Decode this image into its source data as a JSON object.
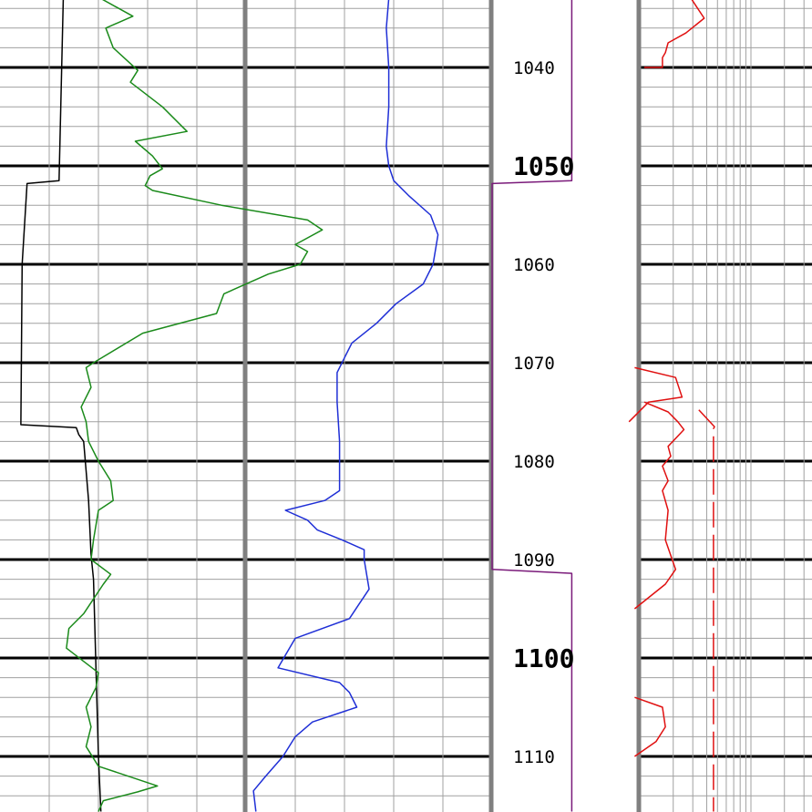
{
  "chart_data": {
    "type": "line",
    "depth_axis": {
      "range": [
        1033.2,
        1115.6
      ],
      "labels": [
        {
          "depth": 1040,
          "text": "1040",
          "weight": "minor"
        },
        {
          "depth": 1050,
          "text": "1050",
          "weight": "major"
        },
        {
          "depth": 1060,
          "text": "1060",
          "weight": "minor"
        },
        {
          "depth": 1070,
          "text": "1070",
          "weight": "minor"
        },
        {
          "depth": 1080,
          "text": "1080",
          "weight": "minor"
        },
        {
          "depth": 1090,
          "text": "1090",
          "weight": "minor"
        },
        {
          "depth": 1100,
          "text": "1100",
          "weight": "major"
        },
        {
          "depth": 1110,
          "text": "1110",
          "weight": "minor"
        }
      ]
    },
    "grid": {
      "linear_tracks": true,
      "log_track": true,
      "heavy_lines_every": 10
    },
    "colors": {
      "black_curve": "#000000",
      "green_curve": "#1a8a1a",
      "blue_curve": "#1f2fd6",
      "purple_curve": "#7a1a7a",
      "red_curve": "#e01010",
      "track_separator": "#808080",
      "grid_minor": "#a0a0a0",
      "grid_major": "#000000"
    },
    "series": [
      {
        "track": 1,
        "color_key": "black_curve",
        "scale": [
          0,
          10
        ],
        "points": [
          [
            1030,
            2.6
          ],
          [
            1051.5,
            2.4
          ],
          [
            1051.8,
            1.1
          ],
          [
            1060,
            0.9
          ],
          [
            1076.3,
            0.85
          ],
          [
            1076.6,
            3.1
          ],
          [
            1077.3,
            3.2
          ],
          [
            1078,
            3.4
          ],
          [
            1084,
            3.6
          ],
          [
            1089.5,
            3.7
          ],
          [
            1092,
            3.8
          ],
          [
            1110,
            4.0
          ],
          [
            1115.6,
            4.1
          ]
        ]
      },
      {
        "track": 1,
        "color_key": "green_curve",
        "scale": [
          0,
          10
        ],
        "points": [
          [
            1033,
            4.1
          ],
          [
            1034.8,
            5.4
          ],
          [
            1036,
            4.3
          ],
          [
            1038,
            4.6
          ],
          [
            1040.3,
            5.6
          ],
          [
            1041.5,
            5.3
          ],
          [
            1044,
            6.6
          ],
          [
            1046.5,
            7.6
          ],
          [
            1047.5,
            5.5
          ],
          [
            1049,
            6.2
          ],
          [
            1050.3,
            6.6
          ],
          [
            1051,
            6.1
          ],
          [
            1052,
            5.9
          ],
          [
            1052.5,
            6.2
          ],
          [
            1054,
            9.0
          ],
          [
            1055.5,
            12.5
          ],
          [
            1056.5,
            13.1
          ],
          [
            1058,
            12.0
          ],
          [
            1058.7,
            12.5
          ],
          [
            1060,
            12.2
          ],
          [
            1061,
            10.9
          ],
          [
            1063,
            9.1
          ],
          [
            1065,
            8.8
          ],
          [
            1067,
            5.8
          ],
          [
            1070,
            3.8
          ],
          [
            1070.5,
            3.5
          ],
          [
            1072.5,
            3.7
          ],
          [
            1074.5,
            3.3
          ],
          [
            1076,
            3.5
          ],
          [
            1078,
            3.6
          ],
          [
            1080,
            4.0
          ],
          [
            1082,
            4.5
          ],
          [
            1084,
            4.6
          ],
          [
            1085,
            4.0
          ],
          [
            1088,
            3.8
          ],
          [
            1090,
            3.7
          ],
          [
            1091.5,
            4.5
          ],
          [
            1092.5,
            4.2
          ],
          [
            1094,
            3.8
          ],
          [
            1095.5,
            3.4
          ],
          [
            1097,
            2.8
          ],
          [
            1099,
            2.7
          ],
          [
            1101.5,
            4.0
          ],
          [
            1103,
            3.9
          ],
          [
            1105,
            3.5
          ],
          [
            1107,
            3.7
          ],
          [
            1109,
            3.5
          ],
          [
            1111,
            4.0
          ],
          [
            1113,
            6.4
          ],
          [
            1113.6,
            5.6
          ],
          [
            1114.5,
            4.2
          ],
          [
            1115.6,
            4.0
          ]
        ]
      },
      {
        "track": 2,
        "color_key": "blue_curve",
        "scale": [
          0,
          10
        ],
        "points": [
          [
            1033,
            5.8
          ],
          [
            1036,
            5.7
          ],
          [
            1040,
            5.8
          ],
          [
            1044,
            5.8
          ],
          [
            1048,
            5.7
          ],
          [
            1050,
            5.8
          ],
          [
            1051.5,
            6.0
          ],
          [
            1053,
            6.6
          ],
          [
            1055,
            7.5
          ],
          [
            1057,
            7.8
          ],
          [
            1060,
            7.6
          ],
          [
            1062,
            7.2
          ],
          [
            1064,
            6.1
          ],
          [
            1066,
            5.3
          ],
          [
            1068,
            4.3
          ],
          [
            1069.5,
            4.0
          ],
          [
            1071,
            3.7
          ],
          [
            1074,
            3.7
          ],
          [
            1078,
            3.8
          ],
          [
            1083,
            3.8
          ],
          [
            1084,
            3.2
          ],
          [
            1085,
            1.6
          ],
          [
            1086,
            2.5
          ],
          [
            1087,
            2.9
          ],
          [
            1088,
            3.9
          ],
          [
            1089,
            4.8
          ],
          [
            1090,
            4.8
          ],
          [
            1091.5,
            4.9
          ],
          [
            1093,
            5.0
          ],
          [
            1094.5,
            4.6
          ],
          [
            1096,
            4.2
          ],
          [
            1098,
            2.0
          ],
          [
            1101,
            1.3
          ],
          [
            1102.5,
            3.8
          ],
          [
            1103.5,
            4.2
          ],
          [
            1105,
            4.5
          ],
          [
            1106.5,
            2.7
          ],
          [
            1108,
            2.0
          ],
          [
            1110,
            1.5
          ],
          [
            1112,
            0.8
          ],
          [
            1113.5,
            0.3
          ],
          [
            1115.6,
            0.4
          ]
        ]
      },
      {
        "track": 3,
        "color_key": "purple_curve",
        "scale": [
          0,
          10
        ],
        "points": [
          [
            1030,
            9.1
          ],
          [
            1051.5,
            9.1
          ],
          [
            1051.8,
            0.0
          ],
          [
            1091,
            0.0
          ],
          [
            1091.4,
            9.1
          ],
          [
            1115.6,
            9.1
          ]
        ]
      },
      {
        "track": 4,
        "color_key": "red_curve",
        "scale": "log",
        "dash": "solid",
        "segments": [
          [
            [
              1033,
              2.9
            ],
            [
              1035,
              3.8
            ],
            [
              1036.5,
              2.6
            ],
            [
              1037.5,
              1.8
            ],
            [
              1038.5,
              1.7
            ],
            [
              1039,
              1.6
            ],
            [
              1040,
              1.6
            ],
            [
              1040,
              1.1
            ]
          ],
          [
            [
              1070.5,
              0.9
            ],
            [
              1071.5,
              2.1
            ],
            [
              1073.5,
              2.4
            ],
            [
              1074,
              1.2
            ],
            [
              1076,
              0.8
            ]
          ],
          [
            [
              1074,
              1.1
            ],
            [
              1075,
              1.8
            ],
            [
              1076,
              2.2
            ],
            [
              1076.8,
              2.5
            ],
            [
              1077,
              2.4
            ],
            [
              1078.5,
              1.8
            ],
            [
              1079.5,
              1.9
            ],
            [
              1080.5,
              1.6
            ],
            [
              1082,
              1.8
            ],
            [
              1083,
              1.6
            ],
            [
              1085,
              1.8
            ],
            [
              1088,
              1.7
            ],
            [
              1091,
              2.1
            ],
            [
              1092.5,
              1.7
            ],
            [
              1095,
              0.9
            ]
          ],
          [
            [
              1104,
              0.9
            ],
            [
              1105,
              1.6
            ],
            [
              1107,
              1.7
            ],
            [
              1108.5,
              1.4
            ],
            [
              1110,
              0.9
            ]
          ]
        ]
      },
      {
        "track": 4,
        "color_key": "red_curve",
        "scale": "log",
        "dash": "long-dash",
        "segments": [
          [
            [
              1074.8,
              3.4
            ],
            [
              1076.5,
              4.7
            ],
            [
              1076.7,
              4.6
            ],
            [
              1115.6,
              4.6
            ]
          ]
        ]
      }
    ]
  }
}
